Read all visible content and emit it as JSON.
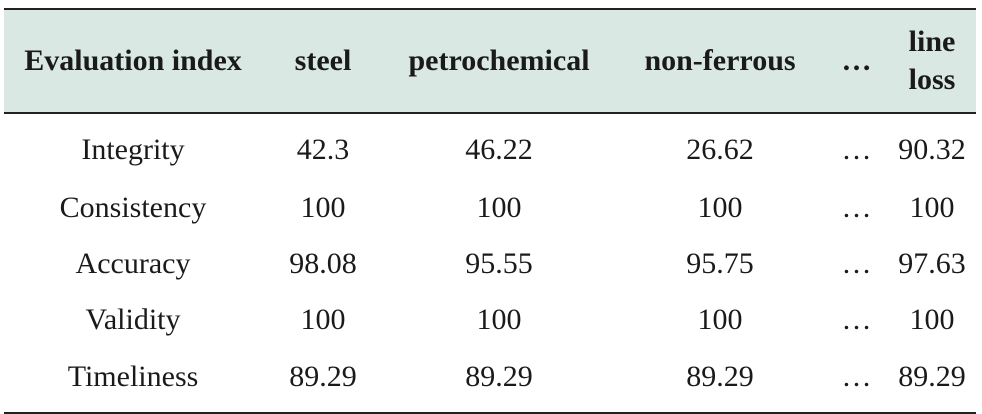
{
  "table": {
    "headers": [
      "Evaluation index",
      "steel",
      "petrochemical",
      "non-ferrous",
      "…",
      "line loss"
    ],
    "rows": [
      [
        "Integrity",
        "42.3",
        "46.22",
        "26.62",
        "…",
        "90.32"
      ],
      [
        "Consistency",
        "100",
        "100",
        "100",
        "…",
        "100"
      ],
      [
        "Accuracy",
        "98.08",
        "95.55",
        "95.75",
        "…",
        "97.63"
      ],
      [
        "Validity",
        "100",
        "100",
        "100",
        "…",
        "100"
      ],
      [
        "Timeliness",
        "89.29",
        "89.29",
        "89.29",
        "…",
        "89.29"
      ]
    ]
  },
  "colors": {
    "header_background": "#d9e8e2",
    "rule": "#222222"
  }
}
